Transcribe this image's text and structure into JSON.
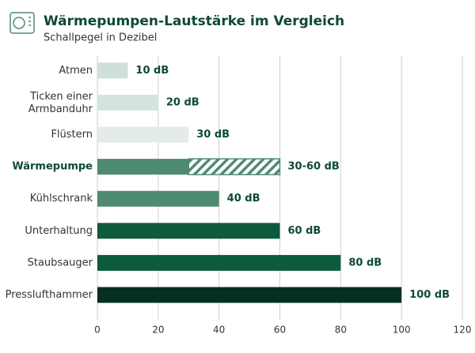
{
  "chart_data": {
    "type": "bar",
    "orientation": "horizontal",
    "title": "Wärmepumpen-Lautstärke im Vergleich",
    "subtitle": "Schallpegel in Dezibel",
    "categories": [
      "Atmen",
      "Ticken einer\nArmbanduhr",
      "Flüstern",
      "Wärmepumpe",
      "Kühlschrank",
      "Unterhaltung",
      "Staubsauger",
      "Presslufthammer"
    ],
    "values": [
      10,
      20,
      30,
      60,
      40,
      60,
      80,
      100
    ],
    "low_values": [
      null,
      null,
      null,
      30,
      null,
      null,
      null,
      null
    ],
    "value_labels": [
      "10 dB",
      "20 dB",
      "30 dB",
      "30-60 dB",
      "40 dB",
      "60 dB",
      "80 dB",
      "100 dB"
    ],
    "colors": [
      "#cfe0d8",
      "#d5e3dd",
      "#e3ece8",
      "#4f8a73",
      "#4f8a73",
      "#0e5a3d",
      "#0e5a3d",
      "#06301f"
    ],
    "highlight": 3,
    "xlim": [
      0,
      120
    ],
    "xticks": [
      0,
      20,
      40,
      60,
      80,
      100,
      120
    ],
    "grid": true
  }
}
